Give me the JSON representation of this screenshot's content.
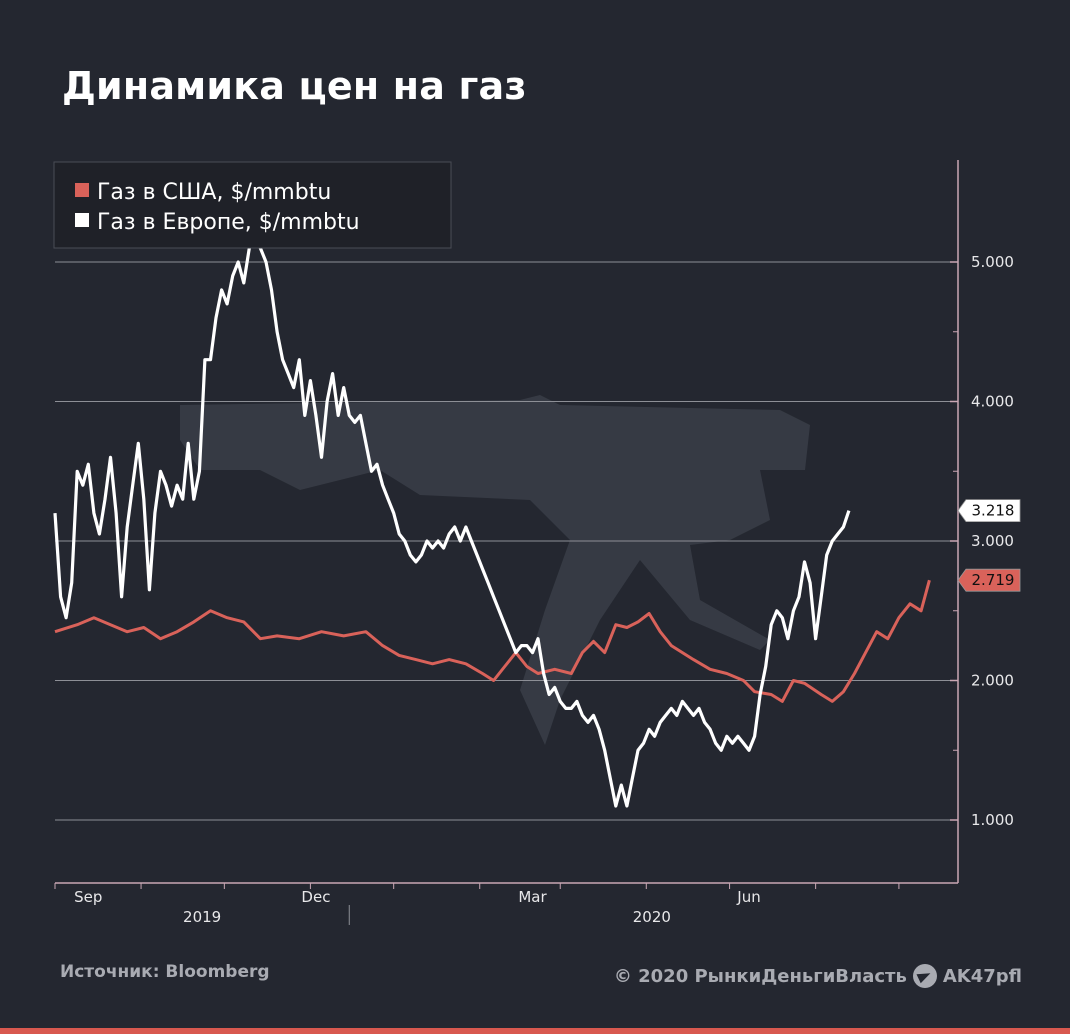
{
  "title": "Динамика цен на газ",
  "source": "Источник: Bloomberg",
  "copyright": "© 2020  РынкиДеньгиВласть",
  "telegram": "AK47pfl",
  "colors": {
    "background": "#242730",
    "us_series": "#d9625a",
    "eu_series": "#ffffff",
    "grid": "#8d8f96",
    "accent_bar": "#d8584f"
  },
  "chart_data": {
    "type": "line",
    "ylim": [
      0.5,
      5.3
    ],
    "y_ticks": [
      1.0,
      2.0,
      3.0,
      4.0,
      5.0
    ],
    "y_tick_labels": [
      "1.000",
      "2.000",
      "3.000",
      "4.000",
      "5.000"
    ],
    "x_range": [
      0,
      317
    ],
    "month_ticks": [
      {
        "x": 12,
        "label": "Sep"
      },
      {
        "x": 94,
        "label": "Dec"
      },
      {
        "x": 172,
        "label": "Mar"
      },
      {
        "x": 250,
        "label": "Jun"
      }
    ],
    "year_labels": [
      {
        "x": 53,
        "label": "2019"
      },
      {
        "x": 215,
        "label": "2020"
      }
    ],
    "year_divider_x": 106,
    "minor_ticks": [
      0,
      31,
      61,
      92,
      122,
      153,
      182,
      213,
      243,
      274,
      304
    ],
    "legend": [
      "Газ в США, $/mmbtu",
      "Газ в Европе, $/mmbtu"
    ],
    "last_labels": {
      "us": "2.719",
      "eu": "3.218"
    },
    "series": [
      {
        "name": "Газ в США, $/mmbtu",
        "color": "#d9625a",
        "points": [
          [
            0,
            2.35
          ],
          [
            8,
            2.4
          ],
          [
            14,
            2.45
          ],
          [
            20,
            2.4
          ],
          [
            26,
            2.35
          ],
          [
            32,
            2.38
          ],
          [
            38,
            2.3
          ],
          [
            44,
            2.35
          ],
          [
            50,
            2.42
          ],
          [
            56,
            2.5
          ],
          [
            62,
            2.45
          ],
          [
            68,
            2.42
          ],
          [
            74,
            2.3
          ],
          [
            80,
            2.32
          ],
          [
            88,
            2.3
          ],
          [
            96,
            2.35
          ],
          [
            104,
            2.32
          ],
          [
            112,
            2.35
          ],
          [
            118,
            2.25
          ],
          [
            124,
            2.18
          ],
          [
            130,
            2.15
          ],
          [
            136,
            2.12
          ],
          [
            142,
            2.15
          ],
          [
            148,
            2.12
          ],
          [
            154,
            2.05
          ],
          [
            158,
            2.0
          ],
          [
            162,
            2.1
          ],
          [
            166,
            2.2
          ],
          [
            170,
            2.1
          ],
          [
            174,
            2.05
          ],
          [
            180,
            2.08
          ],
          [
            186,
            2.05
          ],
          [
            190,
            2.2
          ],
          [
            194,
            2.28
          ],
          [
            198,
            2.2
          ],
          [
            202,
            2.4
          ],
          [
            206,
            2.38
          ],
          [
            210,
            2.42
          ],
          [
            214,
            2.48
          ],
          [
            218,
            2.35
          ],
          [
            222,
            2.25
          ],
          [
            226,
            2.2
          ],
          [
            230,
            2.15
          ],
          [
            236,
            2.08
          ],
          [
            242,
            2.05
          ],
          [
            248,
            2.0
          ],
          [
            252,
            1.92
          ],
          [
            258,
            1.9
          ],
          [
            262,
            1.85
          ],
          [
            266,
            2.0
          ],
          [
            270,
            1.98
          ],
          [
            276,
            1.9
          ],
          [
            280,
            1.85
          ],
          [
            284,
            1.92
          ],
          [
            288,
            2.05
          ],
          [
            292,
            2.2
          ],
          [
            296,
            2.35
          ],
          [
            300,
            2.3
          ],
          [
            304,
            2.45
          ],
          [
            308,
            2.55
          ],
          [
            312,
            2.5
          ],
          [
            315,
            2.719
          ]
        ]
      },
      {
        "name": "Газ в Европе, $/mmbtu",
        "color": "#ffffff",
        "points": [
          [
            0,
            3.2
          ],
          [
            2,
            2.6
          ],
          [
            4,
            2.45
          ],
          [
            6,
            2.7
          ],
          [
            8,
            3.5
          ],
          [
            10,
            3.4
          ],
          [
            12,
            3.55
          ],
          [
            14,
            3.2
          ],
          [
            16,
            3.05
          ],
          [
            18,
            3.3
          ],
          [
            20,
            3.6
          ],
          [
            22,
            3.2
          ],
          [
            24,
            2.6
          ],
          [
            26,
            3.1
          ],
          [
            28,
            3.4
          ],
          [
            30,
            3.7
          ],
          [
            32,
            3.3
          ],
          [
            34,
            2.65
          ],
          [
            36,
            3.2
          ],
          [
            38,
            3.5
          ],
          [
            40,
            3.4
          ],
          [
            42,
            3.25
          ],
          [
            44,
            3.4
          ],
          [
            46,
            3.3
          ],
          [
            48,
            3.7
          ],
          [
            50,
            3.3
          ],
          [
            52,
            3.5
          ],
          [
            54,
            4.3
          ],
          [
            56,
            4.3
          ],
          [
            58,
            4.6
          ],
          [
            60,
            4.8
          ],
          [
            62,
            4.7
          ],
          [
            64,
            4.9
          ],
          [
            66,
            5.0
          ],
          [
            68,
            4.85
          ],
          [
            70,
            5.1
          ],
          [
            72,
            5.15
          ],
          [
            74,
            5.1
          ],
          [
            76,
            5.0
          ],
          [
            78,
            4.8
          ],
          [
            80,
            4.5
          ],
          [
            82,
            4.3
          ],
          [
            84,
            4.2
          ],
          [
            86,
            4.1
          ],
          [
            88,
            4.3
          ],
          [
            90,
            3.9
          ],
          [
            92,
            4.15
          ],
          [
            94,
            3.9
          ],
          [
            96,
            3.6
          ],
          [
            98,
            4.0
          ],
          [
            100,
            4.2
          ],
          [
            102,
            3.9
          ],
          [
            104,
            4.1
          ],
          [
            106,
            3.9
          ],
          [
            108,
            3.85
          ],
          [
            110,
            3.9
          ],
          [
            112,
            3.7
          ],
          [
            114,
            3.5
          ],
          [
            116,
            3.55
          ],
          [
            118,
            3.4
          ],
          [
            120,
            3.3
          ],
          [
            122,
            3.2
          ],
          [
            124,
            3.05
          ],
          [
            126,
            3.0
          ],
          [
            128,
            2.9
          ],
          [
            130,
            2.85
          ],
          [
            132,
            2.9
          ],
          [
            134,
            3.0
          ],
          [
            136,
            2.95
          ],
          [
            138,
            3.0
          ],
          [
            140,
            2.95
          ],
          [
            142,
            3.05
          ],
          [
            144,
            3.1
          ],
          [
            146,
            3.0
          ],
          [
            148,
            3.1
          ],
          [
            150,
            3.0
          ],
          [
            152,
            2.9
          ],
          [
            154,
            2.8
          ],
          [
            156,
            2.7
          ],
          [
            158,
            2.6
          ],
          [
            160,
            2.5
          ],
          [
            162,
            2.4
          ],
          [
            164,
            2.3
          ],
          [
            166,
            2.2
          ],
          [
            168,
            2.25
          ],
          [
            170,
            2.25
          ],
          [
            172,
            2.2
          ],
          [
            174,
            2.3
          ],
          [
            176,
            2.05
          ],
          [
            178,
            1.9
          ],
          [
            180,
            1.95
          ],
          [
            182,
            1.85
          ],
          [
            184,
            1.8
          ],
          [
            186,
            1.8
          ],
          [
            188,
            1.85
          ],
          [
            190,
            1.75
          ],
          [
            192,
            1.7
          ],
          [
            194,
            1.75
          ],
          [
            196,
            1.65
          ],
          [
            198,
            1.5
          ],
          [
            200,
            1.3
          ],
          [
            202,
            1.1
          ],
          [
            204,
            1.25
          ],
          [
            206,
            1.1
          ],
          [
            208,
            1.3
          ],
          [
            210,
            1.5
          ],
          [
            212,
            1.55
          ],
          [
            214,
            1.65
          ],
          [
            216,
            1.6
          ],
          [
            218,
            1.7
          ],
          [
            220,
            1.75
          ],
          [
            222,
            1.8
          ],
          [
            224,
            1.75
          ],
          [
            226,
            1.85
          ],
          [
            228,
            1.8
          ],
          [
            230,
            1.75
          ],
          [
            232,
            1.8
          ],
          [
            234,
            1.7
          ],
          [
            236,
            1.65
          ],
          [
            238,
            1.55
          ],
          [
            240,
            1.5
          ],
          [
            242,
            1.6
          ],
          [
            244,
            1.55
          ],
          [
            246,
            1.6
          ],
          [
            248,
            1.55
          ],
          [
            250,
            1.5
          ],
          [
            252,
            1.6
          ],
          [
            254,
            1.9
          ],
          [
            256,
            2.1
          ],
          [
            258,
            2.4
          ],
          [
            260,
            2.5
          ],
          [
            262,
            2.45
          ],
          [
            264,
            2.3
          ],
          [
            266,
            2.5
          ],
          [
            268,
            2.6
          ],
          [
            270,
            2.85
          ],
          [
            272,
            2.7
          ],
          [
            274,
            2.3
          ],
          [
            276,
            2.6
          ],
          [
            278,
            2.9
          ],
          [
            280,
            3.0
          ],
          [
            282,
            3.05
          ],
          [
            284,
            3.1
          ],
          [
            286,
            3.218
          ]
        ]
      }
    ]
  }
}
